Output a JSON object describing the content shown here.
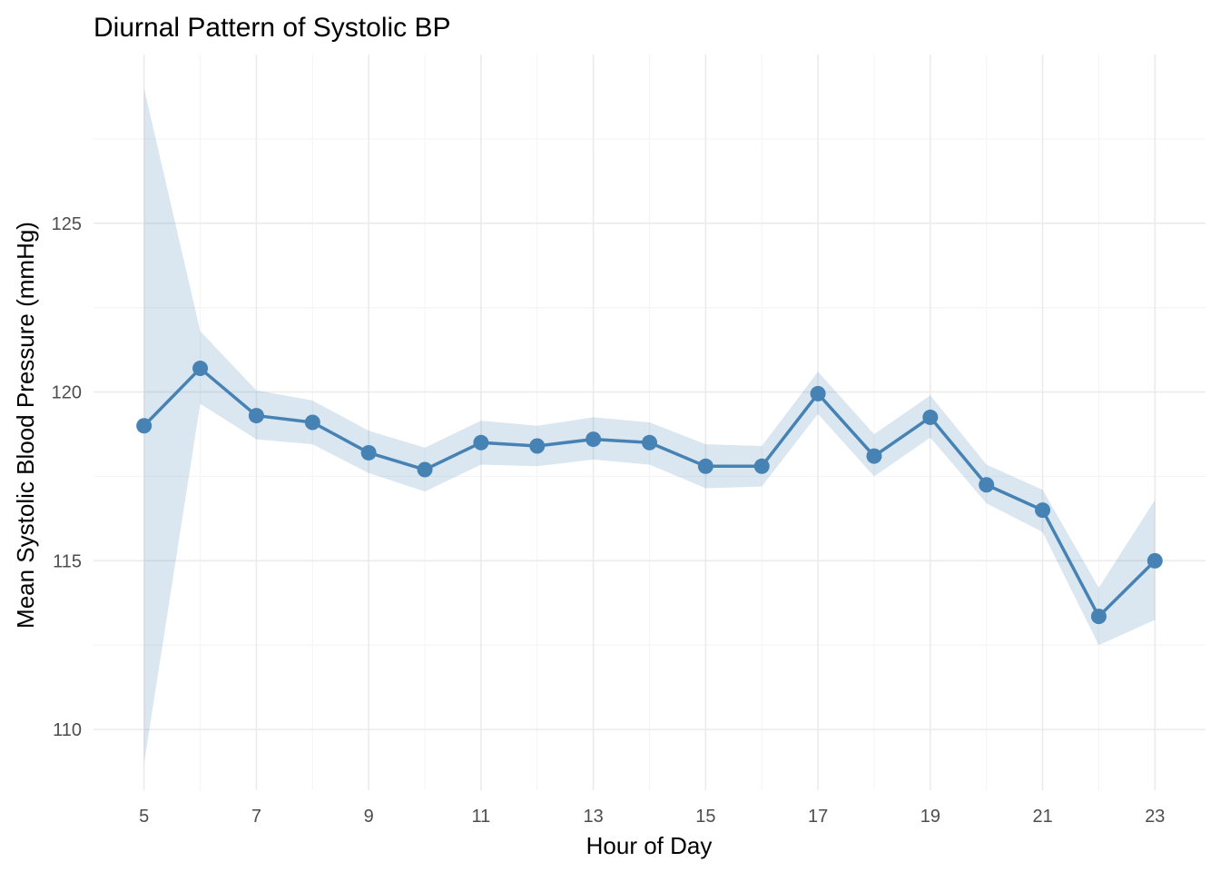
{
  "chart_data": {
    "type": "line",
    "title": "Diurnal Pattern of Systolic BP",
    "xlabel": "Hour of Day",
    "ylabel": "Mean Systolic Blood Pressure (mmHg)",
    "xlim": [
      4.1,
      23.9
    ],
    "ylim": [
      108.2,
      130.0
    ],
    "x_ticks": [
      5,
      7,
      9,
      11,
      13,
      15,
      17,
      19,
      21,
      23
    ],
    "y_ticks": [
      110,
      115,
      120,
      125
    ],
    "grid": true,
    "legend": "none",
    "colors": {
      "line": "#4682b4",
      "ribbon": "#4682b4",
      "grid_major": "#ebebeb",
      "grid_minor": "#f5f5f5"
    },
    "series": [
      {
        "x": [
          5,
          6,
          7,
          8,
          9,
          10,
          11,
          12,
          13,
          14,
          15,
          16,
          17,
          18,
          19,
          20,
          21,
          22,
          23
        ],
        "y": [
          119.0,
          120.7,
          119.3,
          119.1,
          118.2,
          117.7,
          118.5,
          118.4,
          118.6,
          118.5,
          117.8,
          117.8,
          119.95,
          118.1,
          119.25,
          117.25,
          116.5,
          113.35,
          115.0
        ],
        "lower": [
          109.0,
          119.65,
          118.6,
          118.45,
          117.6,
          117.05,
          117.85,
          117.8,
          118.0,
          117.85,
          117.15,
          117.2,
          119.35,
          117.5,
          118.65,
          116.7,
          115.85,
          112.5,
          113.25
        ],
        "upper": [
          129.0,
          121.8,
          120.05,
          119.75,
          118.85,
          118.35,
          119.15,
          119.0,
          119.25,
          119.1,
          118.45,
          118.4,
          120.6,
          118.75,
          119.9,
          117.85,
          117.1,
          114.2,
          116.8
        ]
      }
    ]
  }
}
